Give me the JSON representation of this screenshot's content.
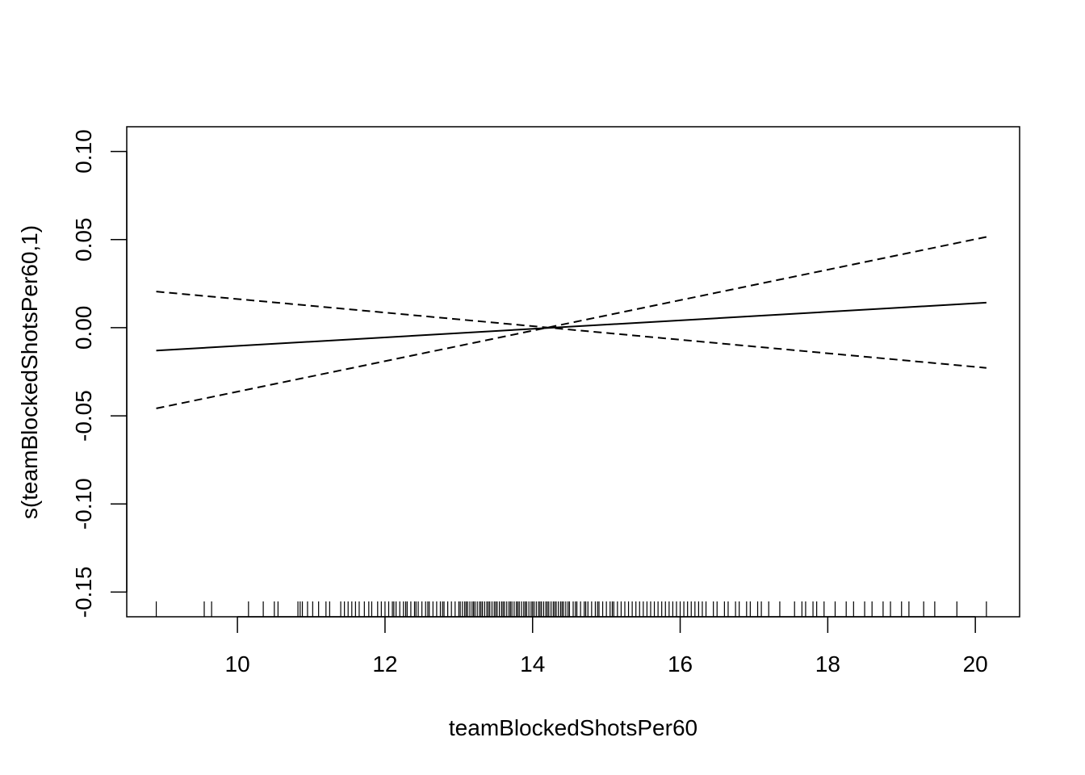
{
  "chart_data": {
    "type": "line",
    "xlabel": "teamBlockedShotsPer60",
    "ylabel": "s(teamBlockedShotsPer60,1)",
    "xlim": [
      8.5,
      20.6
    ],
    "ylim": [
      -0.164,
      0.114
    ],
    "x_ticks": [
      10,
      12,
      14,
      16,
      18,
      20
    ],
    "x_tick_labels": [
      "10",
      "12",
      "14",
      "16",
      "18",
      "20"
    ],
    "y_ticks": [
      -0.15,
      -0.1,
      -0.05,
      0.0,
      0.05,
      0.1
    ],
    "y_tick_labels": [
      "-0.15",
      "-0.10",
      "-0.05",
      "0.00",
      "0.05",
      "0.10"
    ],
    "grid": false,
    "series": [
      {
        "style": "solid",
        "x": [
          8.9,
          20.15
        ],
        "y": [
          -0.013,
          0.0142
        ]
      },
      {
        "style": "dashed",
        "x": [
          8.9,
          20.15
        ],
        "y": [
          -0.0458,
          0.0515
        ]
      },
      {
        "style": "dashed",
        "x": [
          8.9,
          20.15
        ],
        "y": [
          0.0205,
          -0.0228
        ]
      }
    ],
    "rug": [
      8.9,
      9.55,
      9.65,
      10.15,
      10.35,
      10.5,
      10.55,
      10.82,
      10.85,
      10.88,
      10.95,
      11.02,
      11.1,
      11.2,
      11.25,
      11.4,
      11.45,
      11.5,
      11.55,
      11.6,
      11.65,
      11.72,
      11.78,
      11.82,
      11.9,
      11.95,
      12.0,
      12.05,
      12.1,
      12.12,
      12.15,
      12.2,
      12.25,
      12.28,
      12.3,
      12.35,
      12.4,
      12.42,
      12.45,
      12.5,
      12.55,
      12.58,
      12.6,
      12.65,
      12.7,
      12.75,
      12.78,
      12.8,
      12.85,
      12.9,
      12.95,
      13.0,
      13.02,
      13.05,
      13.08,
      13.1,
      13.12,
      13.15,
      13.18,
      13.2,
      13.22,
      13.25,
      13.28,
      13.3,
      13.32,
      13.35,
      13.38,
      13.4,
      13.42,
      13.45,
      13.48,
      13.5,
      13.52,
      13.55,
      13.58,
      13.6,
      13.62,
      13.65,
      13.68,
      13.7,
      13.72,
      13.75,
      13.78,
      13.8,
      13.82,
      13.85,
      13.88,
      13.9,
      13.92,
      13.95,
      13.98,
      14.0,
      14.02,
      14.05,
      14.08,
      14.1,
      14.12,
      14.15,
      14.18,
      14.2,
      14.22,
      14.25,
      14.28,
      14.3,
      14.32,
      14.35,
      14.38,
      14.4,
      14.42,
      14.45,
      14.48,
      14.5,
      14.55,
      14.58,
      14.6,
      14.65,
      14.7,
      14.72,
      14.75,
      14.8,
      14.85,
      14.88,
      14.9,
      14.95,
      15.0,
      15.05,
      15.08,
      15.1,
      15.15,
      15.2,
      15.25,
      15.3,
      15.35,
      15.4,
      15.45,
      15.5,
      15.55,
      15.6,
      15.65,
      15.7,
      15.75,
      15.8,
      15.85,
      15.9,
      15.95,
      16.0,
      16.05,
      16.1,
      16.15,
      16.2,
      16.25,
      16.3,
      16.35,
      16.45,
      16.5,
      16.6,
      16.65,
      16.75,
      16.8,
      16.9,
      16.95,
      17.05,
      17.1,
      17.2,
      17.35,
      17.55,
      17.65,
      17.7,
      17.8,
      17.85,
      17.95,
      18.1,
      18.25,
      18.35,
      18.5,
      18.6,
      18.75,
      18.85,
      19.0,
      19.1,
      19.3,
      19.45,
      19.75,
      20.15
    ]
  }
}
